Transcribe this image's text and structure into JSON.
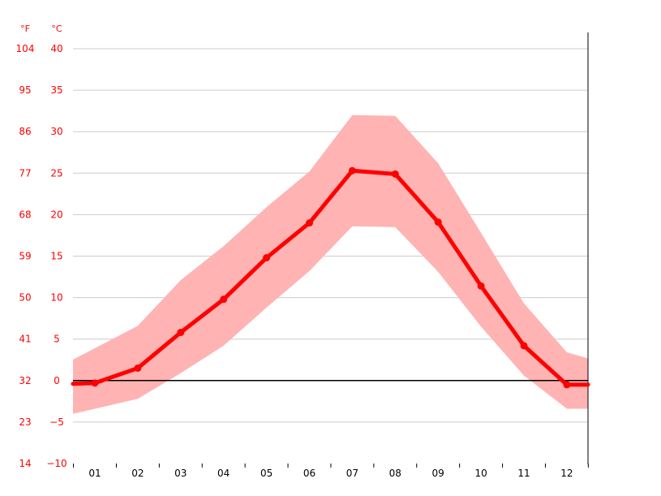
{
  "chart_data": {
    "type": "line",
    "unit_labels": {
      "fahrenheit": "°F",
      "celsius": "°C"
    },
    "categories": [
      "01",
      "02",
      "03",
      "04",
      "05",
      "06",
      "07",
      "08",
      "09",
      "10",
      "11",
      "12"
    ],
    "y_ticks_celsius": [
      "40",
      "35",
      "30",
      "25",
      "20",
      "15",
      "10",
      "5",
      "0",
      "−5",
      "−10"
    ],
    "y_tick_values_celsius": [
      40,
      35,
      30,
      25,
      20,
      15,
      10,
      5,
      0,
      -5,
      -10
    ],
    "y_ticks_fahrenheit": [
      "104",
      "95",
      "86",
      "77",
      "68",
      "59",
      "50",
      "41",
      "32",
      "23",
      "14"
    ],
    "ylim": [
      -10,
      40
    ],
    "grid": true,
    "series": [
      {
        "values": [
          -0.3,
          1.5,
          5.8,
          9.8,
          14.8,
          19.0,
          25.3,
          24.9,
          19.1,
          11.4,
          4.2,
          -0.5
        ],
        "color": "#ff0000"
      }
    ],
    "band": {
      "upper": [
        3.9,
        6.6,
        12.1,
        16.2,
        20.9,
        25.2,
        32.0,
        31.9,
        26.2,
        17.8,
        9.3,
        3.4
      ],
      "lower": [
        -3.4,
        -2.2,
        0.9,
        4.2,
        8.8,
        13.2,
        18.6,
        18.5,
        13.1,
        6.5,
        0.6,
        -3.4
      ],
      "color": "#ffb3b3"
    },
    "colors": {
      "axis_text": "#ff0000",
      "grid": "#cccccc",
      "zero_line": "#000000"
    }
  }
}
